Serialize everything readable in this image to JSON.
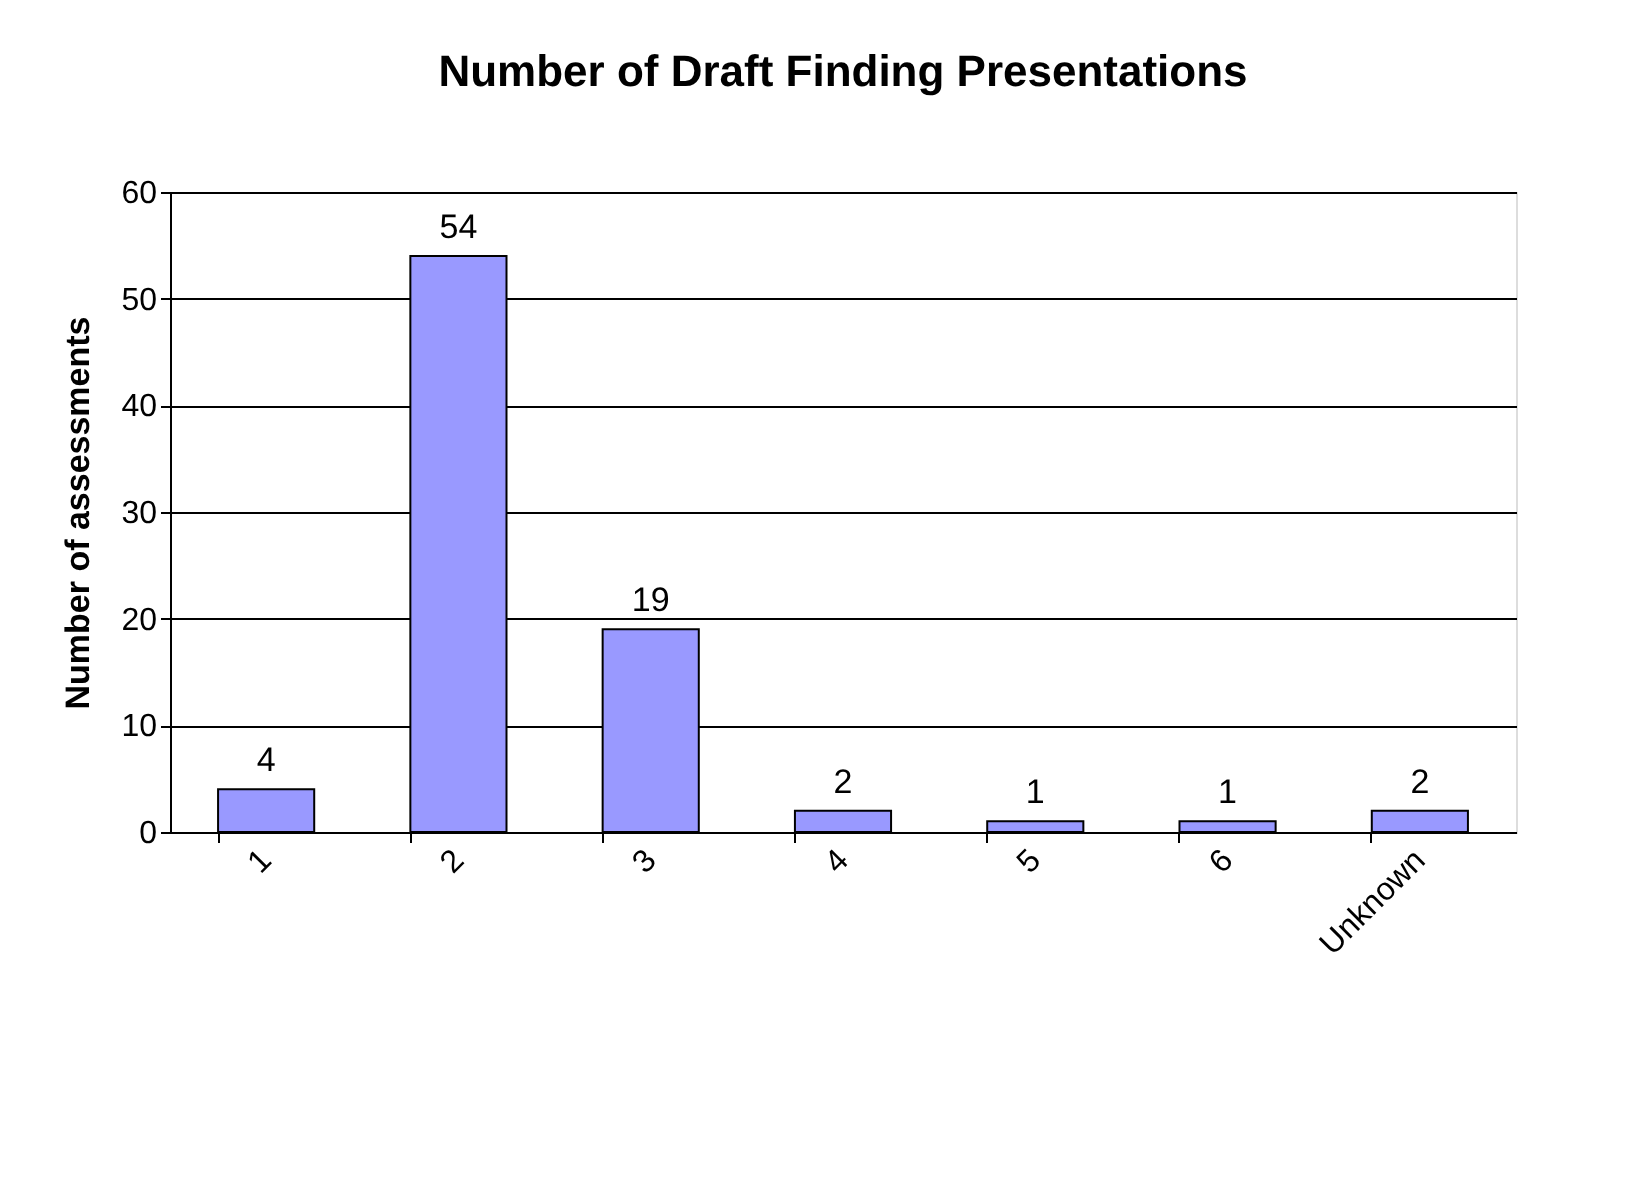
{
  "chart_data": {
    "type": "bar",
    "title": "Number of Draft Finding Presentations",
    "ylabel": "Number of assessments",
    "categories": [
      "1",
      "2",
      "3",
      "4",
      "5",
      "6",
      "Unknown"
    ],
    "values": [
      4,
      54,
      19,
      2,
      1,
      1,
      2
    ],
    "color": "#9999ff",
    "ylim": [
      0,
      60
    ],
    "yticks": [
      0,
      10,
      20,
      30,
      40,
      50,
      60
    ],
    "grid": "y",
    "data_labels": true
  }
}
